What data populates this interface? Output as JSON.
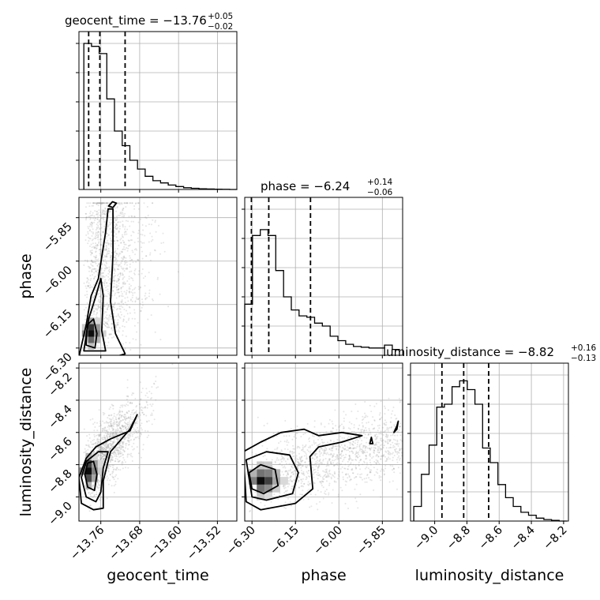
{
  "chart_data": {
    "type": "corner",
    "parameters": [
      "geocent_time",
      "phase",
      "luminosity_distance"
    ],
    "axis_labels": {
      "x": [
        "geocent_time",
        "phase",
        "luminosity_distance"
      ],
      "y": [
        "",
        "phase",
        "luminosity_distance"
      ]
    },
    "titles": [
      {
        "name": "geocent_time",
        "median": "−13.76",
        "plus": "+0.05",
        "minus": "−0.02",
        "text": "geocent_time = −13.76"
      },
      {
        "name": "phase",
        "median": "−6.24",
        "plus": "+0.14",
        "minus": "−0.06",
        "text": "phase = −6.24"
      },
      {
        "name": "luminosity_distance",
        "median": "−8.82",
        "plus": "+0.16",
        "minus": "−0.13",
        "text": "luminosity_distance = −8.82"
      }
    ],
    "ranges": {
      "geocent_time": [
        -13.805,
        -13.48
      ],
      "phase": [
        -6.325,
        -5.78
      ],
      "luminosity_distance": [
        -9.15,
        -8.17
      ]
    },
    "ticks": {
      "geocent_time": {
        "values": [
          -13.76,
          -13.68,
          -13.6,
          -13.52
        ],
        "labels": [
          "−13.76",
          "−13.68",
          "−13.60",
          "−13.52"
        ]
      },
      "phase": {
        "values": [
          -6.3,
          -6.15,
          -6.0,
          -5.85
        ],
        "labels": [
          "−6.30",
          "−6.15",
          "−6.00",
          "−5.85"
        ]
      },
      "luminosity_distance": {
        "values": [
          -9.0,
          -8.8,
          -8.6,
          -8.4,
          -8.2
        ],
        "labels": [
          "−9.0",
          "−8.8",
          "−8.6",
          "−8.4",
          "−8.2"
        ]
      }
    },
    "quantiles": {
      "geocent_time": [
        -13.785,
        -13.762,
        -13.71
      ],
      "phase": [
        -6.302,
        -6.242,
        -6.098
      ],
      "luminosity_distance": [
        -8.955,
        -8.82,
        -8.665
      ]
    },
    "histograms": {
      "geocent_time": {
        "edges_start": -13.795,
        "bin_width": 0.0158,
        "counts": [
          1.0,
          0.98,
          0.93,
          0.62,
          0.4,
          0.3,
          0.2,
          0.14,
          0.09,
          0.06,
          0.045,
          0.03,
          0.02,
          0.012,
          0.008,
          0.005,
          0.003,
          0.002,
          0.001,
          0.0
        ]
      },
      "phase": {
        "edges_start": -6.325,
        "bin_width": 0.0268,
        "counts": [
          0.35,
          0.82,
          0.86,
          0.82,
          0.58,
          0.4,
          0.31,
          0.27,
          0.26,
          0.22,
          0.2,
          0.13,
          0.1,
          0.075,
          0.06,
          0.055,
          0.05,
          0.05,
          0.07,
          0.04
        ]
      },
      "luminosity_distance": {
        "edges_start": -9.13,
        "bin_width": 0.0475,
        "counts": [
          0.1,
          0.32,
          0.52,
          0.78,
          0.8,
          0.92,
          0.96,
          0.9,
          0.8,
          0.5,
          0.4,
          0.25,
          0.16,
          0.1,
          0.06,
          0.04,
          0.02,
          0.01,
          0.005,
          0.0
        ]
      }
    },
    "peaks": {
      "phase_vs_geocent_time": {
        "x": -13.78,
        "y": -6.25
      },
      "luminosity_distance_vs_geocent_time": {
        "x": -13.785,
        "y": -8.84
      },
      "luminosity_distance_vs_phase": {
        "x": -6.27,
        "y": -8.9
      }
    },
    "grid": true,
    "colors": {
      "line": "#000000",
      "points": "#888888",
      "grid": "#b0b0b0"
    }
  }
}
